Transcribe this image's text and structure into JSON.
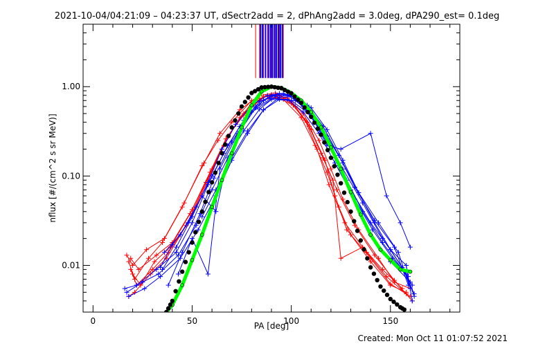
{
  "chart_data": {
    "type": "line",
    "title": "2021-10-04/04:21:09 – 04:23:37 UT, dSectr2add = 2, dPhAng2add = 3.0deg, dPA290_est=  0.1deg",
    "xlabel": "PA [deg]",
    "ylabel": "nflux [#/(cm^2 s sr MeV)]",
    "xlim": [
      -5,
      185
    ],
    "ylim": [
      0.003,
      5
    ],
    "yscale": "log",
    "xticks": [
      0,
      50,
      100,
      150
    ],
    "xtick_labels": [
      "0",
      "50",
      "100",
      "150"
    ],
    "yticks": [
      0.01,
      0.1,
      1.0
    ],
    "ytick_labels": [
      "0.01",
      "0.10",
      "1.00"
    ],
    "grid": false,
    "footer": "Created: Mon Oct 11 01:07:52 2021",
    "colors": {
      "red": "#ff0000",
      "blue": "#0000ff",
      "green": "#00ff00",
      "black": "#000000"
    },
    "series": [
      {
        "color": "#00ff00",
        "style": "thick-line-dots",
        "x": [
          37,
          40,
          45,
          50,
          55,
          60,
          65,
          70,
          75,
          80,
          85,
          90,
          95,
          100,
          105,
          110,
          115,
          120,
          125,
          130,
          135,
          140,
          145,
          150,
          155,
          160
        ],
        "y": [
          0.003,
          0.0036,
          0.006,
          0.0115,
          0.022,
          0.045,
          0.09,
          0.18,
          0.35,
          0.62,
          0.88,
          1.0,
          0.97,
          0.85,
          0.7,
          0.52,
          0.35,
          0.21,
          0.12,
          0.066,
          0.037,
          0.022,
          0.015,
          0.0115,
          0.009,
          0.0085
        ]
      },
      {
        "color": "#000000",
        "style": "dots",
        "x": [
          37,
          40,
          45,
          50,
          55,
          60,
          65,
          70,
          75,
          80,
          85,
          90,
          95,
          100,
          105,
          110,
          115,
          120,
          125,
          130,
          135,
          140,
          145,
          150,
          155,
          158
        ],
        "y": [
          0.003,
          0.004,
          0.0085,
          0.018,
          0.04,
          0.085,
          0.18,
          0.35,
          0.6,
          0.85,
          0.98,
          1.0,
          0.96,
          0.84,
          0.66,
          0.46,
          0.29,
          0.16,
          0.083,
          0.04,
          0.019,
          0.0095,
          0.0058,
          0.0042,
          0.0034,
          0.0031
        ]
      }
    ],
    "red_traces": [
      {
        "x": [
          18,
          21,
          28,
          35,
          45,
          55,
          63,
          70,
          80,
          88,
          96,
          105,
          112,
          118,
          124,
          130,
          140,
          150,
          158
        ],
        "y": [
          0.011,
          0.007,
          0.012,
          0.018,
          0.045,
          0.13,
          0.25,
          0.4,
          0.7,
          0.78,
          0.72,
          0.45,
          0.22,
          0.11,
          0.045,
          0.022,
          0.011,
          0.006,
          0.005
        ]
      },
      {
        "x": [
          19,
          22,
          30,
          38,
          48,
          58,
          65,
          72,
          80,
          90,
          98,
          106,
          114,
          120,
          126,
          134,
          144,
          152,
          160
        ],
        "y": [
          0.009,
          0.006,
          0.009,
          0.014,
          0.03,
          0.09,
          0.2,
          0.38,
          0.66,
          0.82,
          0.75,
          0.5,
          0.25,
          0.12,
          0.055,
          0.025,
          0.012,
          0.0065,
          0.0055
        ]
      },
      {
        "x": [
          17,
          20,
          27,
          36,
          46,
          56,
          64,
          74,
          84,
          92,
          100,
          108,
          115,
          121,
          125,
          136,
          146,
          156
        ],
        "y": [
          0.013,
          0.01,
          0.015,
          0.02,
          0.05,
          0.14,
          0.3,
          0.55,
          0.8,
          0.85,
          0.68,
          0.4,
          0.18,
          0.09,
          0.012,
          0.016,
          0.009,
          0.0055
        ]
      },
      {
        "x": [
          18,
          21,
          29,
          37,
          47,
          57,
          66,
          74,
          82,
          90,
          99,
          107,
          113,
          119,
          127,
          138,
          148,
          158
        ],
        "y": [
          0.0045,
          0.005,
          0.008,
          0.012,
          0.028,
          0.085,
          0.22,
          0.45,
          0.72,
          0.8,
          0.7,
          0.42,
          0.2,
          0.08,
          0.03,
          0.014,
          0.0075,
          0.0048
        ]
      },
      {
        "x": [
          20,
          24,
          31,
          39,
          49,
          59,
          67,
          76,
          86,
          94,
          102,
          110,
          116,
          123,
          132,
          142,
          152,
          161
        ],
        "y": [
          0.008,
          0.006,
          0.011,
          0.016,
          0.038,
          0.11,
          0.26,
          0.5,
          0.78,
          0.8,
          0.6,
          0.33,
          0.16,
          0.07,
          0.028,
          0.013,
          0.0068,
          0.004
        ]
      },
      {
        "x": [
          19,
          23,
          32,
          40,
          50,
          60,
          68,
          76,
          84,
          93,
          101,
          109,
          117,
          122,
          128,
          140,
          150,
          160
        ],
        "y": [
          0.012,
          0.009,
          0.013,
          0.018,
          0.042,
          0.12,
          0.28,
          0.48,
          0.7,
          0.76,
          0.62,
          0.36,
          0.15,
          0.06,
          0.025,
          0.012,
          0.0062,
          0.0045
        ]
      }
    ],
    "blue_traces": [
      {
        "x": [
          16,
          22,
          32,
          42,
          50,
          58,
          66,
          74,
          82,
          90,
          98,
          106,
          114,
          122,
          130,
          140,
          150,
          158,
          161
        ],
        "y": [
          0.0055,
          0.006,
          0.009,
          0.014,
          0.03,
          0.08,
          0.18,
          0.36,
          0.6,
          0.8,
          0.82,
          0.6,
          0.34,
          0.16,
          0.07,
          0.03,
          0.015,
          0.01,
          0.004
        ]
      },
      {
        "x": [
          17,
          25,
          33,
          43,
          52,
          60,
          68,
          76,
          84,
          92,
          100,
          108,
          116,
          124,
          132,
          142,
          152,
          159
        ],
        "y": [
          0.005,
          0.0065,
          0.008,
          0.013,
          0.028,
          0.07,
          0.16,
          0.32,
          0.56,
          0.78,
          0.8,
          0.62,
          0.36,
          0.17,
          0.075,
          0.032,
          0.016,
          0.006
        ]
      },
      {
        "x": [
          18,
          26,
          34,
          44,
          53,
          62,
          70,
          78,
          86,
          94,
          102,
          110,
          118,
          126,
          134,
          144,
          154,
          160
        ],
        "y": [
          0.0045,
          0.0055,
          0.0075,
          0.012,
          0.025,
          0.06,
          0.15,
          0.3,
          0.55,
          0.76,
          0.78,
          0.58,
          0.33,
          0.15,
          0.065,
          0.03,
          0.014,
          0.0055
        ]
      },
      {
        "x": [
          35,
          42,
          50,
          58,
          65,
          72,
          80,
          88,
          96,
          104,
          112,
          120,
          128,
          136,
          146,
          156,
          161
        ],
        "y": [
          0.009,
          0.016,
          0.035,
          0.085,
          0.2,
          0.38,
          0.62,
          0.8,
          0.84,
          0.68,
          0.42,
          0.2,
          0.09,
          0.04,
          0.018,
          0.009,
          0.006
        ]
      },
      {
        "x": [
          36,
          44,
          52,
          60,
          68,
          76,
          84,
          92,
          100,
          108,
          116,
          124,
          132,
          140,
          150,
          160
        ],
        "y": [
          0.014,
          0.022,
          0.045,
          0.1,
          0.22,
          0.42,
          0.68,
          0.82,
          0.8,
          0.56,
          0.3,
          0.13,
          0.055,
          0.022,
          0.011,
          0.0065
        ]
      },
      {
        "x": [
          38,
          45,
          54,
          61,
          70,
          78,
          86,
          94,
          102,
          110,
          118,
          126,
          136,
          146,
          156,
          162
        ],
        "y": [
          0.006,
          0.014,
          0.038,
          0.095,
          0.24,
          0.46,
          0.7,
          0.84,
          0.76,
          0.5,
          0.26,
          0.12,
          0.05,
          0.02,
          0.0095,
          0.0048
        ]
      },
      {
        "x": [
          34,
          40,
          48,
          55,
          62,
          68,
          75,
          82,
          90,
          98,
          106,
          114,
          122,
          131,
          141,
          151,
          159
        ],
        "y": [
          0.0095,
          0.017,
          0.03,
          0.06,
          0.04,
          0.16,
          0.34,
          0.58,
          0.74,
          0.72,
          0.52,
          0.3,
          0.14,
          0.06,
          0.025,
          0.012,
          0.0075
        ]
      },
      {
        "x": [
          43,
          50,
          58,
          64,
          73,
          80,
          90,
          100,
          110,
          118,
          125,
          140,
          148,
          155,
          160
        ],
        "y": [
          0.008,
          0.02,
          0.008,
          0.12,
          0.3,
          0.52,
          0.72,
          0.7,
          0.48,
          0.22,
          0.2,
          0.3,
          0.06,
          0.03,
          0.016
        ]
      },
      {
        "x": [
          55,
          62,
          70,
          78,
          86,
          94,
          102,
          110,
          118,
          126,
          134,
          142,
          150,
          158,
          162
        ],
        "y": [
          0.035,
          0.07,
          0.16,
          0.32,
          0.55,
          0.72,
          0.7,
          0.5,
          0.28,
          0.14,
          0.065,
          0.03,
          0.015,
          0.008,
          0.0045
        ]
      }
    ],
    "spikes": {
      "x_min": 80,
      "x_max": 98,
      "y_from": 1.25,
      "red_x": [
        82,
        84,
        86,
        88,
        90,
        92,
        94,
        96
      ],
      "blue_x": [
        84.5,
        85.5,
        87,
        88.5,
        89.5,
        90.5,
        91.5,
        92.5,
        93.5,
        94.5,
        95.5
      ]
    }
  }
}
